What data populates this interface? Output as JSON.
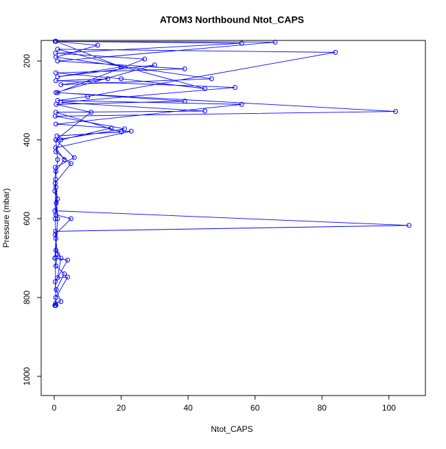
{
  "chart_data": {
    "type": "line",
    "title": "ATOM3 Northbound Ntot_CAPS",
    "x_label": "Ntot_CAPS",
    "y_label": "Pressure (mbar)",
    "xlim": [
      -3.9,
      110.9
    ],
    "xticks": [
      0,
      20,
      40,
      60,
      80,
      100
    ],
    "ylim": [
      1048.7,
      147.8
    ],
    "yticks": [
      200,
      400,
      600,
      800,
      1000
    ],
    "markers": true,
    "series": [
      {
        "name": "Ntot_CAPS",
        "color": "#0000ff",
        "x": [
          0.5,
          20,
          1,
          30,
          0.5,
          102,
          0.3,
          21,
          0.5,
          6,
          0.3,
          0.5,
          0.2,
          106,
          0.4,
          0.5,
          2,
          1,
          4,
          0.5,
          0.3,
          0.4,
          2,
          0.6,
          3,
          0.5,
          1,
          0.3,
          5,
          0.5,
          1,
          0.3,
          5,
          0.5,
          2,
          17,
          0.5,
          56,
          1,
          10,
          84,
          1,
          45,
          20,
          0.5,
          39,
          1,
          66,
          0.5,
          0.3,
          13,
          0.5,
          47,
          2,
          16,
          0.5,
          54,
          2,
          45,
          0.5,
          20,
          0.8,
          23,
          0.4,
          3,
          0.5,
          0.2,
          0.6,
          0.3,
          0.5,
          0.2,
          4,
          0.3,
          0.5,
          0.2,
          0.5,
          0.3,
          1,
          0.4,
          1,
          0.5,
          11,
          0.6,
          39,
          1,
          27,
          0.4,
          56,
          0.3
        ],
        "values": [
          150,
          215,
          240,
          210,
          280,
          328,
          340,
          372,
          400,
          445,
          470,
          520,
          580,
          617,
          632,
          680,
          700,
          750,
          748,
          800,
          820,
          815,
          810,
          780,
          740,
          720,
          690,
          640,
          600,
          590,
          550,
          510,
          460,
          430,
          400,
          370,
          360,
          310,
          300,
          290,
          178,
          170,
          270,
          245,
          230,
          220,
          200,
          152,
          150,
          150,
          160,
          190,
          245,
          260,
          245,
          250,
          267,
          305,
          327,
          330,
          380,
          390,
          378,
          420,
          450,
          480,
          530,
          560,
          600,
          650,
          700,
          705,
          760,
          800,
          820,
          820,
          700,
          600,
          500,
          450,
          400,
          330,
          310,
          302,
          280,
          195,
          180,
          155,
          150
        ]
      }
    ]
  }
}
